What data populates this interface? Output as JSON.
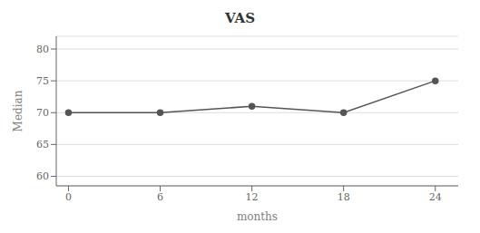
{
  "chart_data": {
    "type": "line",
    "title": "VAS",
    "xlabel": "months",
    "ylabel": "Median",
    "x": [
      0,
      6,
      12,
      18,
      24
    ],
    "values": [
      70,
      70,
      71,
      70,
      75
    ],
    "color": "#555555",
    "marker": "circle",
    "xlim": [
      -0.8,
      25.5
    ],
    "ylim": [
      58.5,
      82
    ],
    "xticks": [
      0,
      6,
      12,
      18,
      24
    ],
    "yticks": [
      60,
      65,
      70,
      75,
      80
    ],
    "grid": "y"
  }
}
